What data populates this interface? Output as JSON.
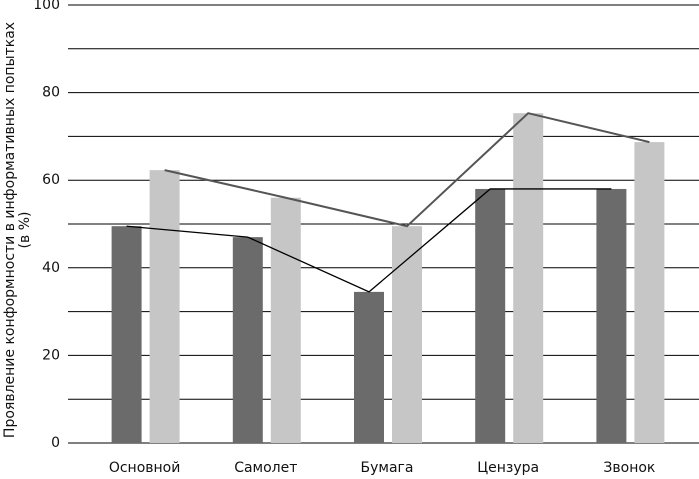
{
  "chart_data": {
    "type": "bar",
    "y_label": [
      "Проявление конформности в информативных попытках",
      "(в %)"
    ],
    "categories": [
      "Основной",
      "Самолет",
      "Бумага",
      "Цензура",
      "Звонок"
    ],
    "series": [
      {
        "color": "#6b6b6b",
        "line_color": "#000000",
        "values": [
          49.5,
          47,
          34.5,
          58,
          58
        ]
      },
      {
        "color": "#c6c6c6",
        "line_color": "#555555",
        "values": [
          62.3,
          56,
          49.5,
          75.3,
          68.7
        ]
      }
    ],
    "ylim": [
      0,
      100
    ],
    "yticks": [
      0,
      20,
      40,
      60,
      80,
      100
    ],
    "minor_yticks": [
      10,
      30,
      50,
      70,
      90
    ],
    "grid": true
  }
}
